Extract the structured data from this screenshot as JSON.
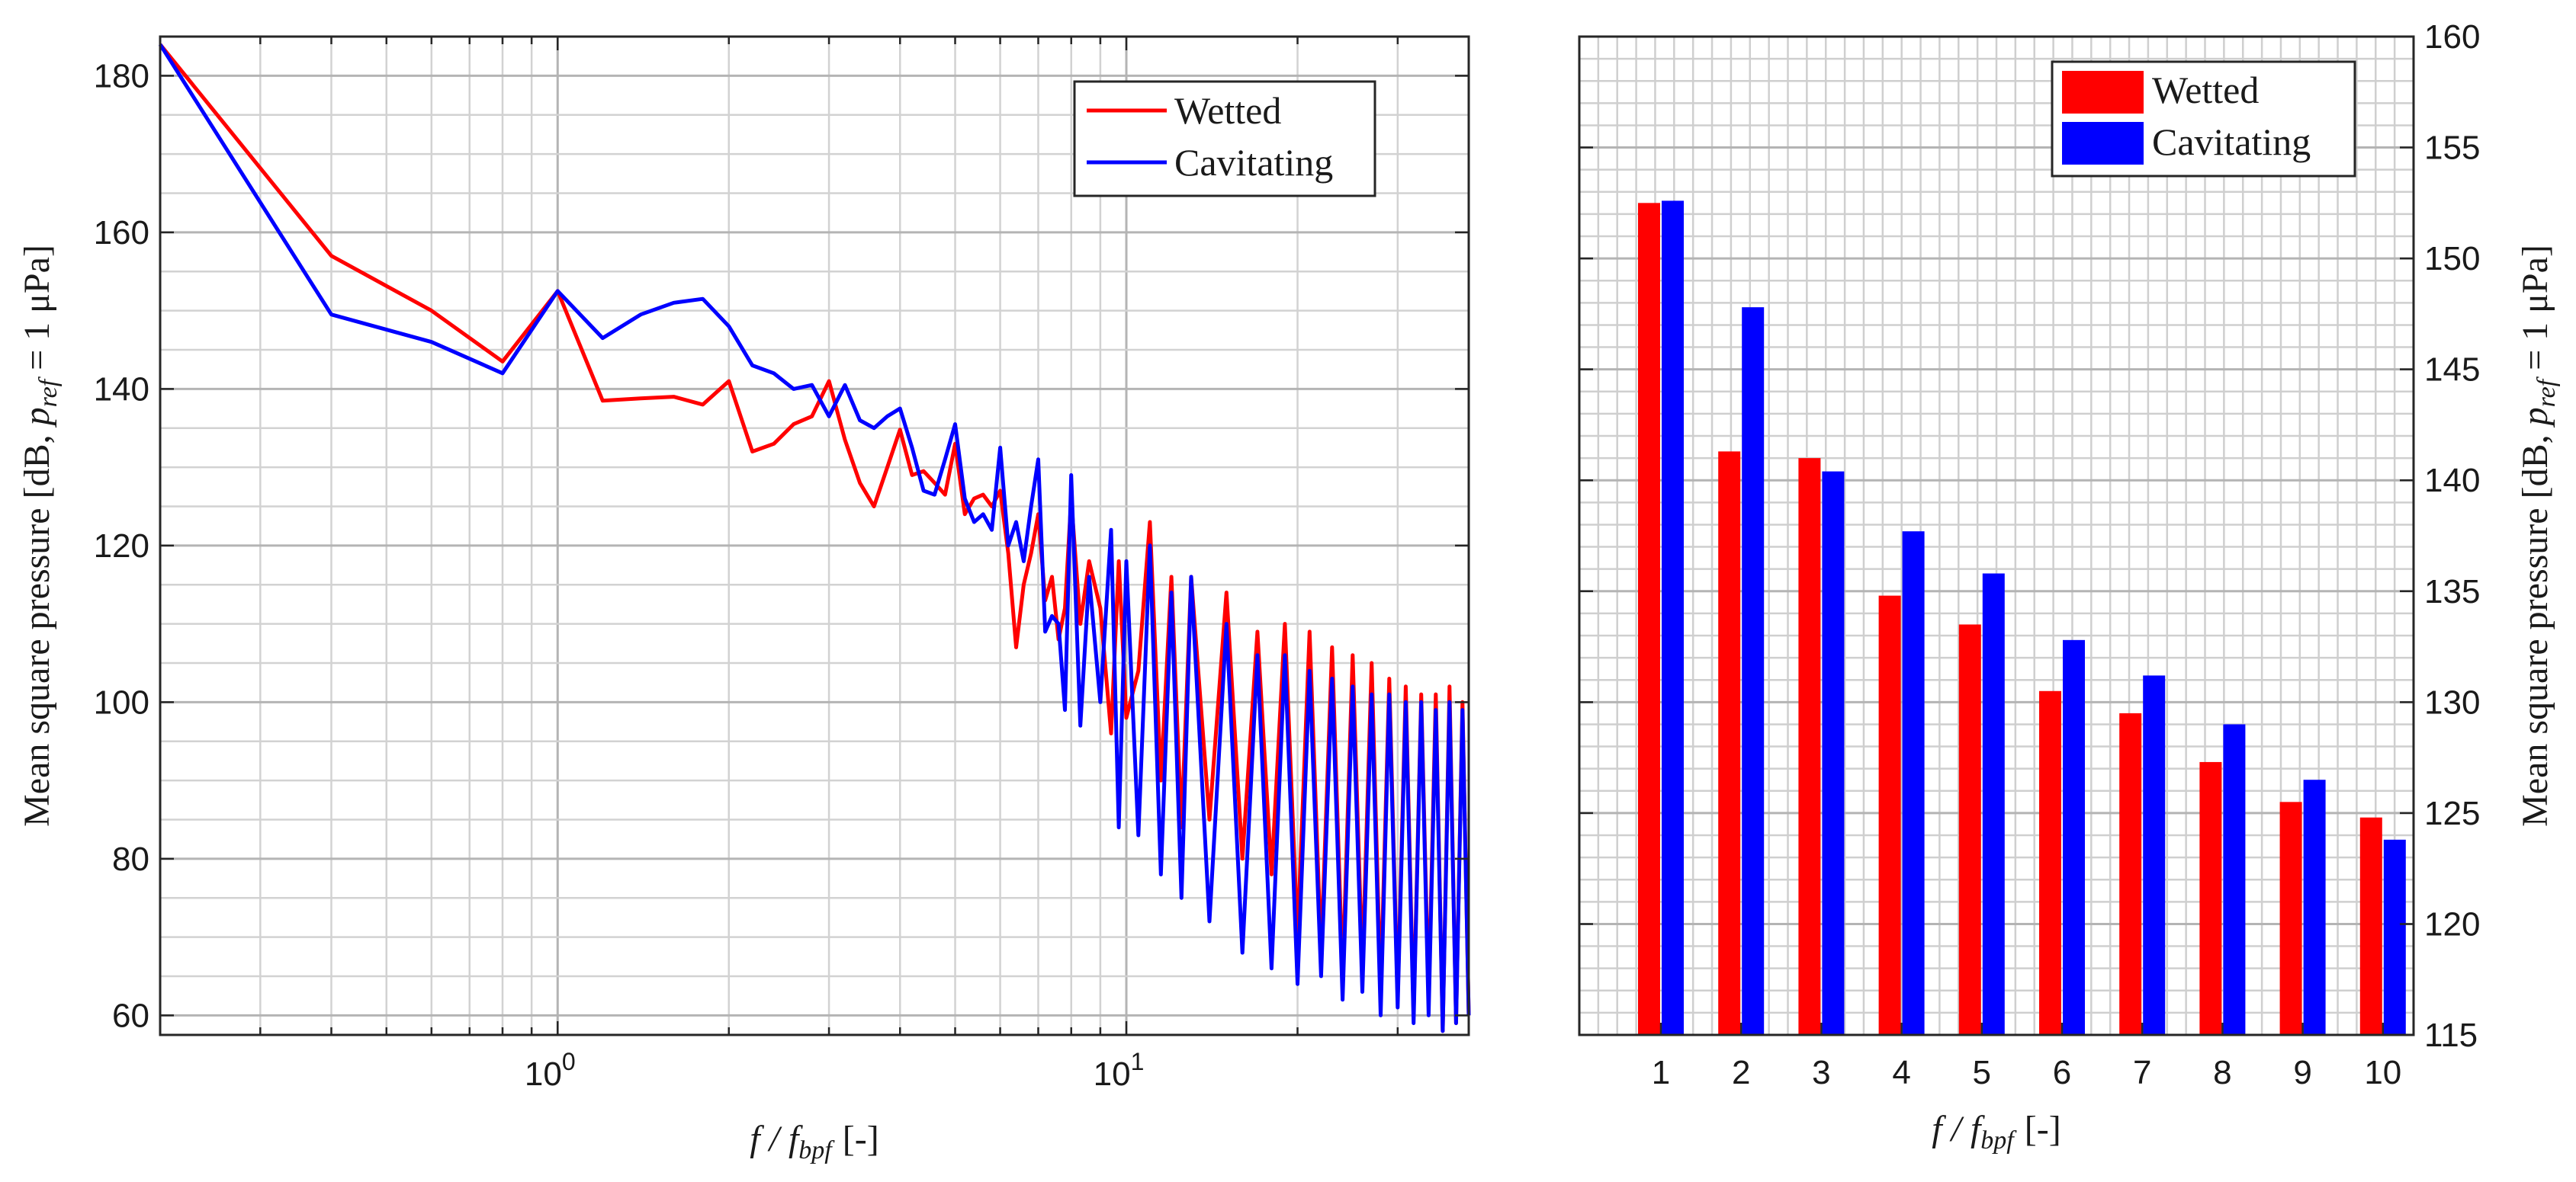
{
  "figure_title": "",
  "chart_data": [
    {
      "type": "line",
      "title": "",
      "xscale": "log",
      "xlabel": {
        "main": "f / f",
        "sub": "bpf",
        "unit": "[-]"
      },
      "ylabel": {
        "main": "Mean square pressure [dB, ",
        "p": "p",
        "sub": "ref",
        "rest": " = 1 μPa]"
      },
      "xlim": [
        0.2,
        40
      ],
      "ylim": [
        57.5,
        185
      ],
      "xticks": [
        {
          "value": 1,
          "base": "10",
          "exp": "0"
        },
        {
          "value": 10,
          "base": "10",
          "exp": "1"
        }
      ],
      "yticks": [
        "60",
        "80",
        "100",
        "120",
        "140",
        "160",
        "180"
      ],
      "ytick_values": [
        60,
        80,
        100,
        120,
        140,
        160,
        180
      ],
      "grid": true,
      "minor_grid": true,
      "legend_position": "top-right",
      "series": [
        {
          "name": "Wetted",
          "color": "#ff0000",
          "x": [
            0.2,
            0.4,
            0.6,
            0.8,
            1.0,
            1.2,
            1.4,
            1.6,
            1.8,
            2.0,
            2.2,
            2.4,
            2.6,
            2.8,
            3.0,
            3.2,
            3.4,
            3.6,
            3.8,
            4.0,
            4.2,
            4.4,
            4.6,
            4.8,
            5.0,
            5.2,
            5.4,
            5.6,
            5.8,
            6.0,
            6.2,
            6.4,
            6.6,
            6.8,
            7.0,
            7.2,
            7.4,
            7.6,
            7.8,
            8.0,
            8.3,
            8.6,
            9.0,
            9.4,
            9.7,
            10.0,
            10.5,
            11.0,
            11.5,
            12.0,
            12.5,
            13.0,
            14.0,
            15.0,
            16.0,
            17.0,
            18.0,
            19.0,
            20.0,
            21.0,
            22.0,
            23.0,
            24.0,
            25.0,
            26.0,
            27.0,
            28.0,
            29.0,
            30.0,
            31.0,
            32.0,
            33.0,
            34.0,
            35.0,
            36.0,
            37.0,
            38.0,
            39.0,
            40.0
          ],
          "values": [
            184,
            157,
            150,
            143.5,
            152.5,
            138.5,
            138.8,
            139,
            138,
            141,
            132,
            133,
            135.5,
            136.5,
            141,
            133.5,
            128,
            125,
            130,
            134.8,
            129,
            129.5,
            128,
            126.5,
            133,
            124,
            126,
            126.5,
            125,
            127,
            119,
            107,
            115,
            119,
            124,
            113,
            116,
            108,
            112,
            126,
            110,
            118,
            112,
            96,
            118,
            98,
            104,
            123,
            90,
            116,
            84,
            116,
            85,
            114,
            80,
            109,
            78,
            110,
            70,
            109,
            68,
            107,
            65,
            106,
            66,
            105,
            63,
            103,
            62,
            102,
            60,
            101,
            62,
            101,
            58,
            102,
            59,
            100,
            60
          ]
        },
        {
          "name": "Cavitating",
          "color": "#0000ff",
          "x": [
            0.2,
            0.4,
            0.6,
            0.8,
            1.0,
            1.2,
            1.4,
            1.6,
            1.8,
            2.0,
            2.2,
            2.4,
            2.6,
            2.8,
            3.0,
            3.2,
            3.4,
            3.6,
            3.8,
            4.0,
            4.2,
            4.4,
            4.6,
            4.8,
            5.0,
            5.2,
            5.4,
            5.6,
            5.8,
            6.0,
            6.2,
            6.4,
            6.6,
            6.8,
            7.0,
            7.2,
            7.4,
            7.6,
            7.8,
            8.0,
            8.3,
            8.6,
            9.0,
            9.4,
            9.7,
            10.0,
            10.5,
            11.0,
            11.5,
            12.0,
            12.5,
            13.0,
            14.0,
            15.0,
            16.0,
            17.0,
            18.0,
            19.0,
            20.0,
            21.0,
            22.0,
            23.0,
            24.0,
            25.0,
            26.0,
            27.0,
            28.0,
            29.0,
            30.0,
            31.0,
            32.0,
            33.0,
            34.0,
            35.0,
            36.0,
            37.0,
            38.0,
            39.0,
            40.0
          ],
          "values": [
            184,
            149.5,
            146,
            142,
            152.5,
            146.5,
            149.5,
            151,
            151.5,
            148,
            143,
            142,
            140,
            140.5,
            136.5,
            140.5,
            136,
            135,
            136.5,
            137.5,
            132.5,
            127,
            126.5,
            131,
            135.5,
            126,
            123,
            124,
            122,
            132.5,
            120,
            123,
            118,
            125,
            131,
            109,
            111,
            110,
            99,
            129,
            97,
            116,
            100,
            122,
            84,
            118,
            83,
            120,
            78,
            114,
            75,
            116,
            72,
            110,
            68,
            106,
            66,
            106,
            64,
            104,
            65,
            103,
            62,
            102,
            63,
            101,
            60,
            101,
            61,
            100,
            59,
            100,
            60,
            99,
            58,
            100,
            59,
            99,
            60
          ]
        }
      ]
    },
    {
      "type": "bar",
      "title": "",
      "xlabel": {
        "main": "f / f",
        "sub": "bpf",
        "unit": "[-]"
      },
      "ylabel": {
        "main": "Mean square pressure [dB, ",
        "p": "p",
        "sub": "ref",
        "rest": " = 1 μPa]"
      },
      "categories": [
        "1",
        "2",
        "3",
        "4",
        "5",
        "6",
        "7",
        "8",
        "9",
        "10"
      ],
      "ylim": [
        115,
        160
      ],
      "yticks": [
        "115",
        "120",
        "125",
        "130",
        "135",
        "140",
        "145",
        "150",
        "155",
        "160"
      ],
      "ytick_values": [
        115,
        120,
        125,
        130,
        135,
        140,
        145,
        150,
        155,
        160
      ],
      "yaxis_position": "right",
      "grid": true,
      "minor_grid": true,
      "legend_position": "top-right",
      "series": [
        {
          "name": "Wetted",
          "color": "#ff0000",
          "values": [
            152.5,
            141.3,
            141.0,
            134.8,
            133.5,
            130.5,
            129.5,
            127.3,
            125.5,
            124.8
          ]
        },
        {
          "name": "Cavitating",
          "color": "#0000ff",
          "values": [
            152.6,
            147.8,
            140.4,
            137.7,
            135.8,
            132.8,
            131.2,
            129.0,
            126.5,
            123.8
          ]
        }
      ]
    }
  ]
}
